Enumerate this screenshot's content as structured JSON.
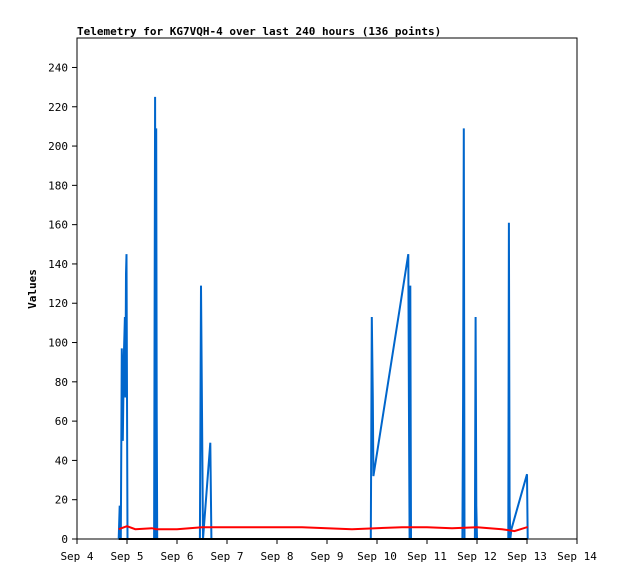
{
  "chart_data": {
    "type": "line",
    "title": "Telemetry for KG7VQH-4 over last 240 hours (136 points)",
    "xlabel": "",
    "ylabel": "Values",
    "ylim": [
      0,
      255
    ],
    "yticks": [
      0,
      20,
      40,
      60,
      80,
      100,
      120,
      140,
      160,
      180,
      200,
      220,
      240
    ],
    "xlim": [
      "Sep 4",
      "Sep 14"
    ],
    "xticks": [
      "Sep 4",
      "Sep 5",
      "Sep 6",
      "Sep 7",
      "Sep 8",
      "Sep 9",
      "Sep 10",
      "Sep 11",
      "Sep 12",
      "Sep 13",
      "Sep 14"
    ],
    "grid": false,
    "legend": "none",
    "series": [
      {
        "color": "#0066cc",
        "points": [
          [
            "Sep 4 20:00",
            0
          ],
          [
            "Sep 4 20:30",
            17
          ],
          [
            "Sep 4 21:00",
            0
          ],
          [
            "Sep 4 21:30",
            97
          ],
          [
            "Sep 4 22:00",
            50
          ],
          [
            "Sep 4 22:30",
            94
          ],
          [
            "Sep 4 23:00",
            113
          ],
          [
            "Sep 4 23:15",
            72
          ],
          [
            "Sep 4 23:30",
            135
          ],
          [
            "Sep 4 23:45",
            145
          ],
          [
            "Sep 5 00:00",
            72
          ],
          [
            "Sep 5 00:15",
            0
          ],
          [
            "Sep 5 13:00",
            0
          ],
          [
            "Sep 5 13:30",
            225
          ],
          [
            "Sep 5 13:45",
            0
          ],
          [
            "Sep 5 14:00",
            209
          ],
          [
            "Sep 5 14:15",
            65
          ],
          [
            "Sep 5 14:30",
            0
          ],
          [
            "Sep 6 11:00",
            0
          ],
          [
            "Sep 6 11:30",
            129
          ],
          [
            "Sep 6 12:00",
            65
          ],
          [
            "Sep 6 12:30",
            0
          ],
          [
            "Sep 6 16:00",
            49
          ],
          [
            "Sep 6 16:30",
            0
          ],
          [
            "Sep 9 21:00",
            0
          ],
          [
            "Sep 9 21:15",
            56
          ],
          [
            "Sep 9 21:30",
            113
          ],
          [
            "Sep 9 22:00",
            72
          ],
          [
            "Sep 9 22:15",
            32
          ],
          [
            "Sep 10 15:00",
            145
          ],
          [
            "Sep 10 15:20",
            72
          ],
          [
            "Sep 10 15:40",
            0
          ],
          [
            "Sep 10 16:00",
            129
          ],
          [
            "Sep 10 16:20",
            0
          ],
          [
            "Sep 11 17:00",
            0
          ],
          [
            "Sep 11 17:20",
            72
          ],
          [
            "Sep 11 17:40",
            209
          ],
          [
            "Sep 11 18:00",
            0
          ],
          [
            "Sep 11 23:00",
            0
          ],
          [
            "Sep 11 23:20",
            113
          ],
          [
            "Sep 11 23:40",
            17
          ],
          [
            "Sep 12 00:00",
            0
          ],
          [
            "Sep 12 15:00",
            0
          ],
          [
            "Sep 12 15:20",
            161
          ],
          [
            "Sep 12 15:40",
            17
          ],
          [
            "Sep 12 16:00",
            0
          ],
          [
            "Sep 12 16:30",
            5
          ],
          [
            "Sep 13 00:00",
            33
          ],
          [
            "Sep 13 00:20",
            0
          ]
        ]
      },
      {
        "color": "#ff0000",
        "points": [
          [
            "Sep 4 20:00",
            5
          ],
          [
            "Sep 5 00:00",
            6.5
          ],
          [
            "Sep 5 04:00",
            5
          ],
          [
            "Sep 5 12:00",
            5.5
          ],
          [
            "Sep 5 14:00",
            5
          ],
          [
            "Sep 6 00:00",
            5
          ],
          [
            "Sep 6 12:00",
            6
          ],
          [
            "Sep 7 12:00",
            6
          ],
          [
            "Sep 8 12:00",
            6
          ],
          [
            "Sep 9 12:00",
            5
          ],
          [
            "Sep 10 12:00",
            6
          ],
          [
            "Sep 11 00:00",
            6
          ],
          [
            "Sep 11 12:00",
            5.5
          ],
          [
            "Sep 12 00:00",
            6
          ],
          [
            "Sep 12 12:00",
            5
          ],
          [
            "Sep 12 18:00",
            4
          ],
          [
            "Sep 13 00:00",
            6
          ],
          [
            "Sep 13 00:20",
            6
          ]
        ]
      },
      {
        "color": "#000000",
        "points": [
          [
            "Sep 4 20:00",
            0
          ],
          [
            "Sep 13 00:20",
            0
          ]
        ]
      }
    ]
  }
}
